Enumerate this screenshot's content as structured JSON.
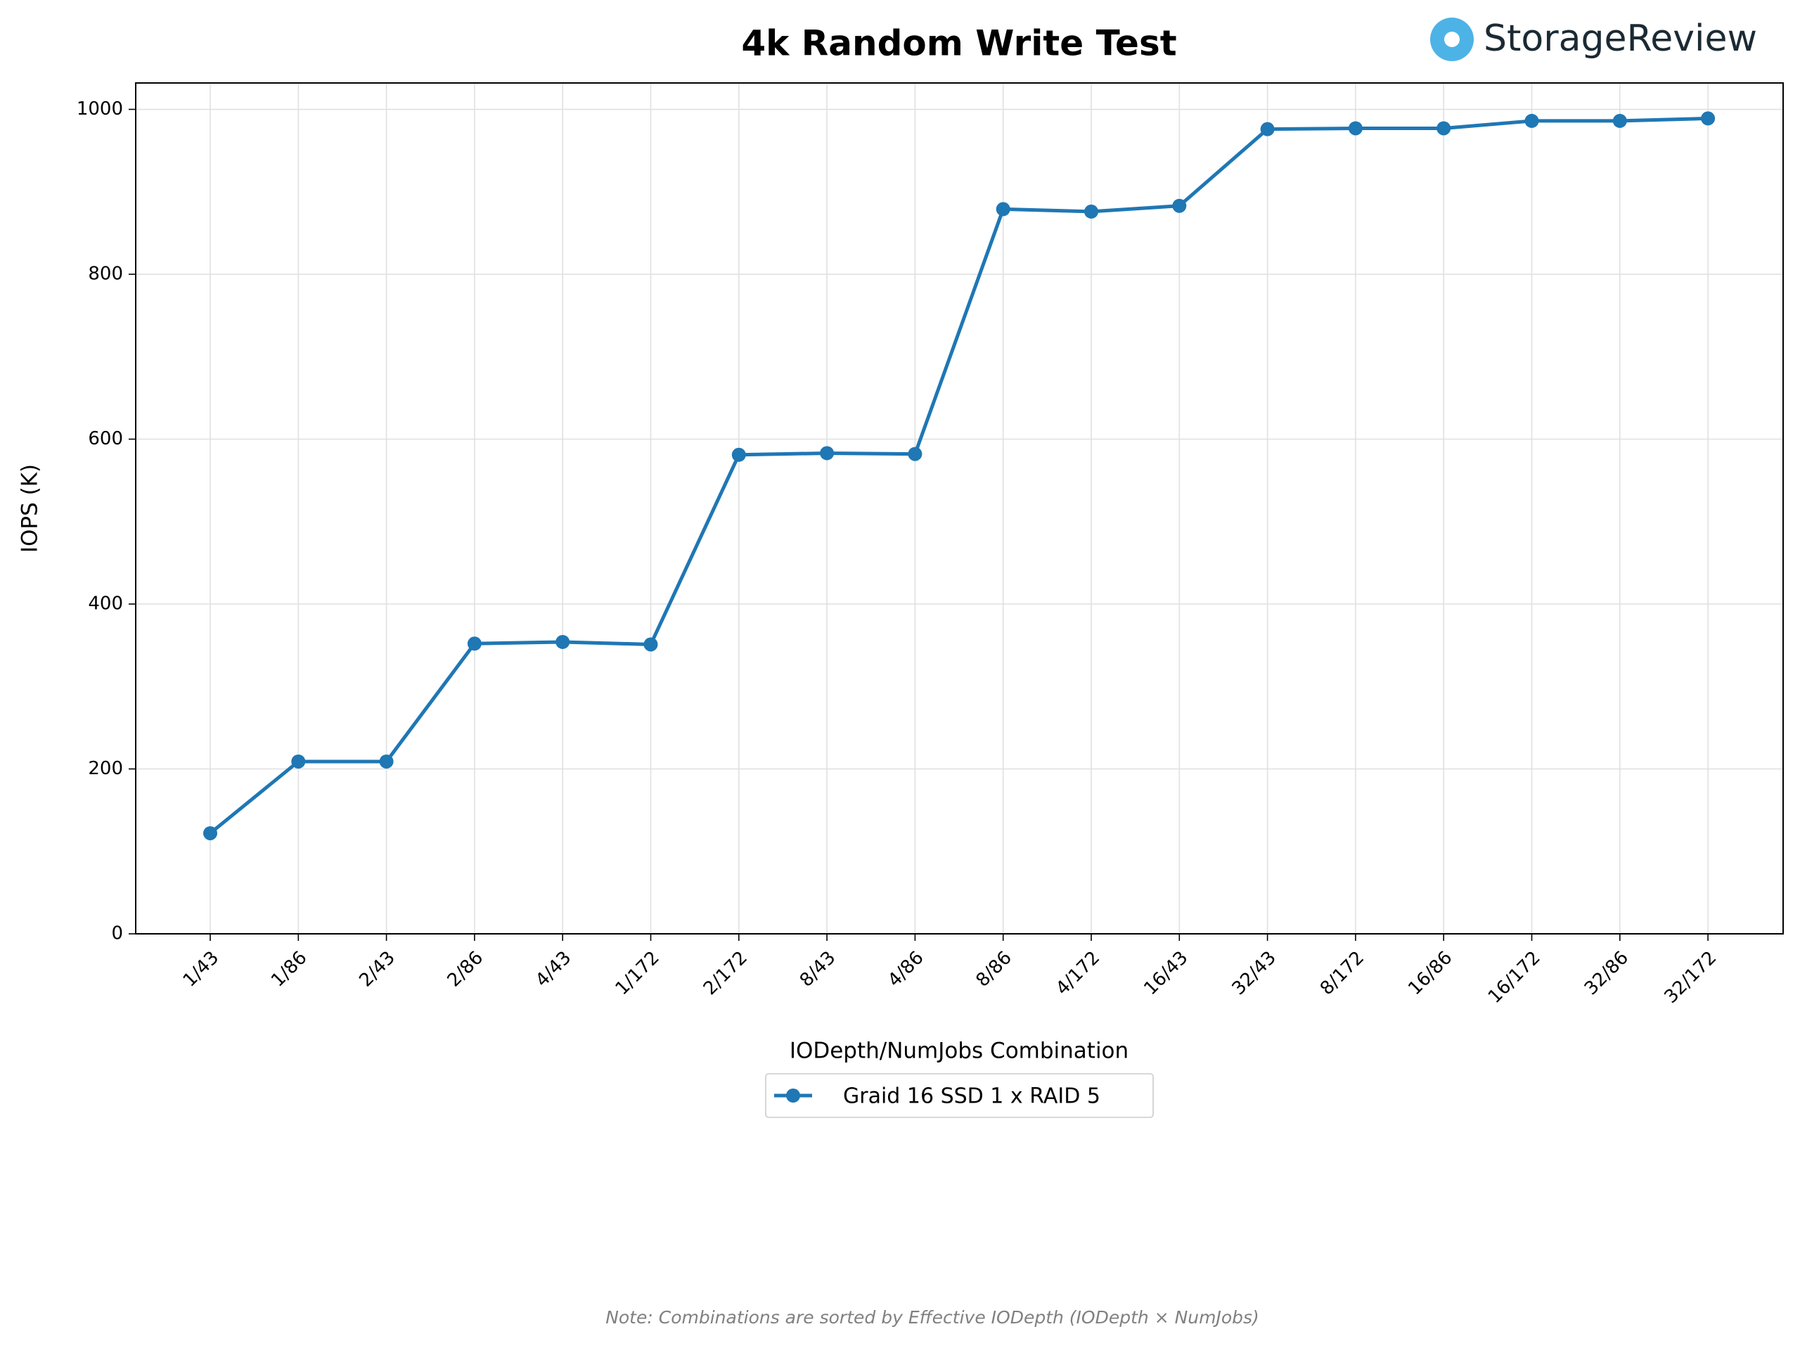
{
  "chart_data": {
    "type": "line",
    "title": "4k Random Write Test",
    "logo": "StorageReview",
    "xlabel": "IODepth/NumJobs Combination",
    "ylabel": "IOPS (K)",
    "categories": [
      "1/43",
      "1/86",
      "2/43",
      "2/86",
      "4/43",
      "1/172",
      "2/172",
      "8/43",
      "4/86",
      "8/86",
      "4/172",
      "16/43",
      "32/43",
      "8/172",
      "16/86",
      "16/172",
      "32/86",
      "32/172"
    ],
    "series": [
      {
        "name": "Graid 16 SSD 1 x RAID 5",
        "color": "#1f77b4",
        "values": [
          122,
          209,
          209,
          352,
          354,
          351,
          581,
          583,
          582,
          879,
          876,
          883,
          976,
          977,
          977,
          986,
          986,
          989
        ]
      }
    ],
    "ylim": [
      0,
      1032
    ],
    "yticks": [
      0,
      200,
      400,
      600,
      800,
      1000
    ],
    "grid": true,
    "legend": "below",
    "note": "Note: Combinations are sorted by Effective IODepth (IODepth × NumJobs)"
  }
}
